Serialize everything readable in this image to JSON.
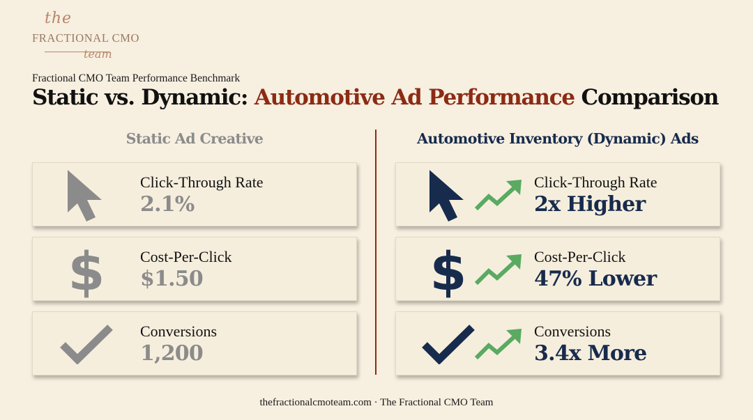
{
  "logo": {
    "the": "the",
    "main": "FRACTIONAL CMO",
    "team": "team"
  },
  "header": {
    "subtitle": "Fractional CMO Team Performance Benchmark",
    "title_part1": "Static vs. Dynamic: ",
    "title_accent": "Automotive Ad Performance",
    "title_part2": " Comparison"
  },
  "colors": {
    "accent": "#8c2b14",
    "static": "#8b8b8b",
    "dynamic": "#172b4d",
    "trend": "#5aaa62",
    "background": "#f7efe0"
  },
  "static": {
    "heading": "Static Ad Creative",
    "metrics": [
      {
        "icon": "cursor-icon",
        "label": "Click-Through Rate",
        "value": "2.1%"
      },
      {
        "icon": "dollar-icon",
        "label": "Cost-Per-Click",
        "value": "$1.50"
      },
      {
        "icon": "checkmark-icon",
        "label": "Conversions",
        "value": "1,200"
      }
    ]
  },
  "dynamic": {
    "heading": "Automotive Inventory (Dynamic) Ads",
    "metrics": [
      {
        "icon": "cursor-icon",
        "label": "Click-Through Rate",
        "value": "2x Higher"
      },
      {
        "icon": "dollar-icon",
        "label": "Cost-Per-Click",
        "value": "47% Lower"
      },
      {
        "icon": "checkmark-icon",
        "label": "Conversions",
        "value": "3.4x More"
      }
    ]
  },
  "footer": {
    "text": "thefractionalcmoteam.com · The Fractional CMO Team"
  }
}
